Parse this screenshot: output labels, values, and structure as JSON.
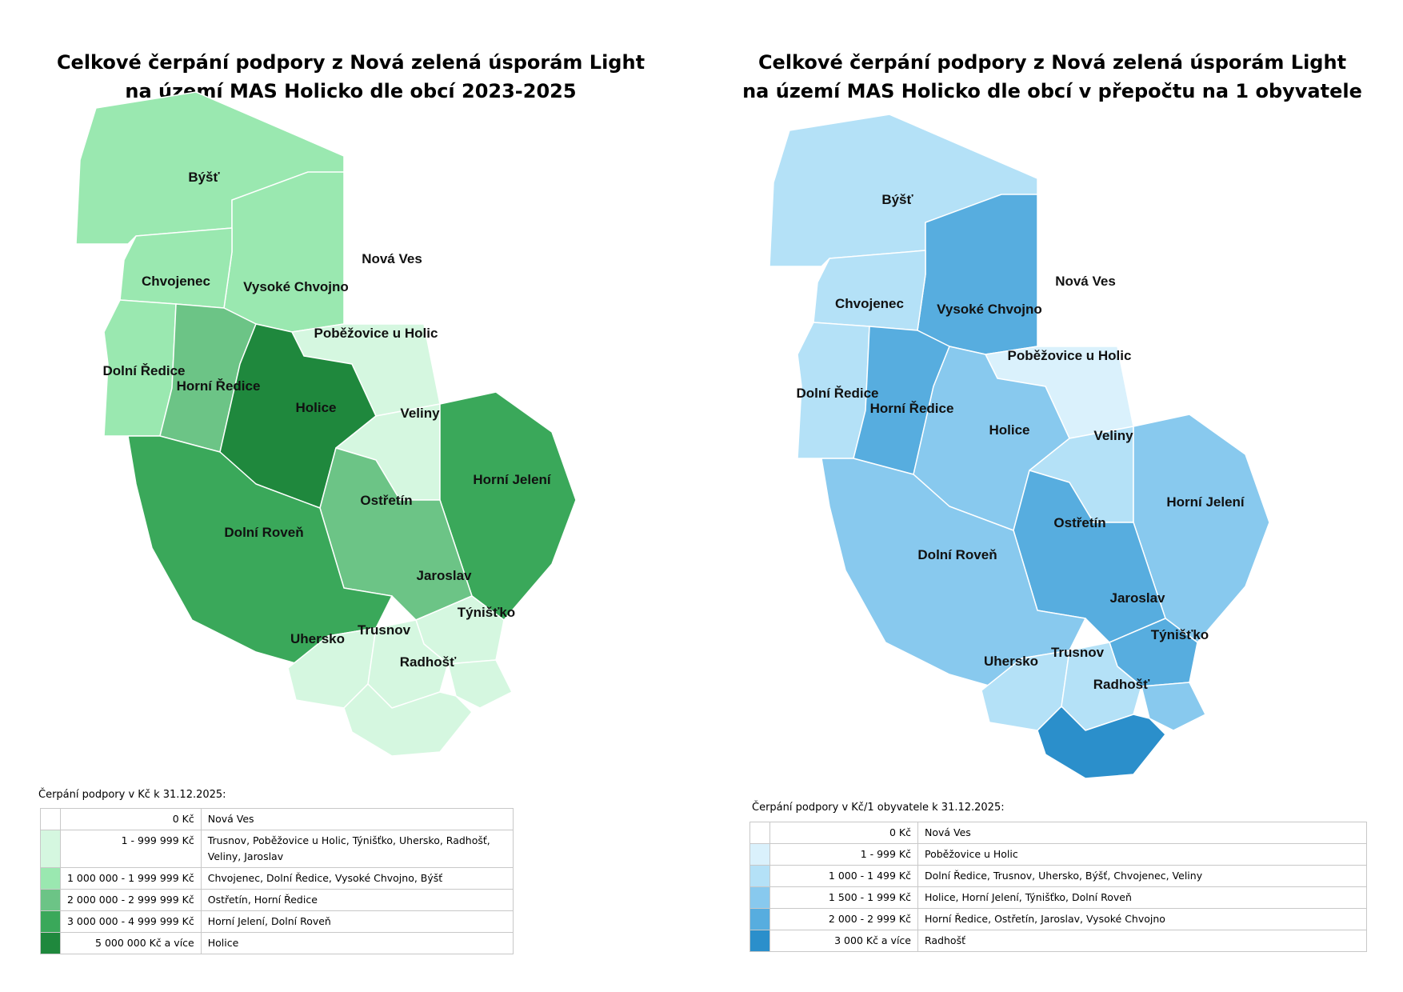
{
  "left": {
    "title_line1": "Celkové čerpání podpory z Nová zelená úsporám Light",
    "title_line2": "na území MAS Holicko dle obcí 2023-2025",
    "labels": {
      "bysts": "Býšť",
      "chvojenec": "Chvojenec",
      "vysoke_chvojno": "Vysoké Chvojno",
      "nova_ves": "Nová Ves",
      "pobezovice": "Poběžovice u Holic",
      "dolni_redice": "Dolní Ředice",
      "horni_redice": "Horní Ředice",
      "holice": "Holice",
      "veliny": "Veliny",
      "horni_jeleni": "Horní Jelení",
      "ostretin": "Ostřetín",
      "dolni roven": "Dolní Roveň",
      "dolni_roven": "Dolní Roveň",
      "jaroslav": "Jaroslav",
      "tynistko": "Týnišťko",
      "uhersko": "Uhersko",
      "trusnov": "Trusnov",
      "radhost": "Radhošť"
    },
    "colors": [
      "#ffffff",
      "#d5f7e0",
      "#9ae8b0",
      "#6cc486",
      "#3aa85a",
      "#1f883d"
    ],
    "legend": {
      "caption": "Čerpání podpory v Kč k 31.12.2025:",
      "rows": [
        {
          "range": "0 Kč",
          "munis": "Nová Ves"
        },
        {
          "range": "1 - 999 999 Kč",
          "munis": "Trusnov, Poběžovice u Holic, Týnišťko, Uhersko, Radhošť, Veliny, Jaroslav"
        },
        {
          "range": "1 000 000 - 1 999 999 Kč",
          "munis": "Chvojenec, Dolní Ředice, Vysoké Chvojno, Býšť"
        },
        {
          "range": "2 000 000 - 2 999 999 Kč",
          "munis": "Ostřetín, Horní Ředice"
        },
        {
          "range": "3 000 000 - 4 999 999 Kč",
          "munis": "Horní Jelení, Dolní Roveň"
        },
        {
          "range": "5 000 000 Kč a více",
          "munis": "Holice"
        }
      ]
    }
  },
  "right": {
    "title_line1": "Celkové čerpání podpory z Nová zelená úsporám Light",
    "title_line2": "na území MAS Holicko dle obcí v přepočtu na 1 obyvatele",
    "colors": [
      "#ffffff",
      "#daf1fc",
      "#b4e1f7",
      "#88c9ee",
      "#57addf",
      "#2b8fcb"
    ],
    "legend": {
      "caption": "Čerpání podpory v Kč/1 obyvatele k 31.12.2025:",
      "rows": [
        {
          "range": "0 Kč",
          "munis": "Nová Ves"
        },
        {
          "range": "1 - 999 Kč",
          "munis": "Poběžovice u Holic"
        },
        {
          "range": "1 000 - 1 499 Kč",
          "munis": "Dolní Ředice, Trusnov, Uhersko, Býšť, Chvojenec, Veliny"
        },
        {
          "range": "1 500 - 1 999 Kč",
          "munis": "Holice, Horní Jelení, Týnišťko, Dolní Roveň"
        },
        {
          "range": "2 000 - 2 999 Kč",
          "munis": "Horní Ředice, Ostřetín, Jaroslav, Vysoké Chvojno"
        },
        {
          "range": "3 000 Kč a více",
          "munis": "Radhošť"
        }
      ]
    }
  },
  "classes": {
    "left": {
      "bysts": 2,
      "chvojenec": 2,
      "vysoke_chvojno": 2,
      "nova_ves": 0,
      "pobezovice": 1,
      "dolni_redice": 2,
      "horni_redice": 3,
      "holice": 5,
      "veliny": 1,
      "horni_jeleni": 4,
      "ostretin": 3,
      "dolni_roven": 4,
      "jaroslav": 1,
      "tynistko": 1,
      "uhersko": 1,
      "trusnov": 1,
      "radhost": 1
    },
    "right": {
      "bysts": 2,
      "chvojenec": 2,
      "vysoke_chvojno": 4,
      "nova_ves": 0,
      "pobezovice": 1,
      "dolni_redice": 2,
      "horni_redice": 4,
      "holice": 3,
      "veliny": 2,
      "horni_jeleni": 3,
      "ostretin": 4,
      "dolni_roven": 3,
      "jaroslav": 4,
      "tynistko": 3,
      "uhersko": 2,
      "trusnov": 2,
      "radhost": 5
    }
  }
}
